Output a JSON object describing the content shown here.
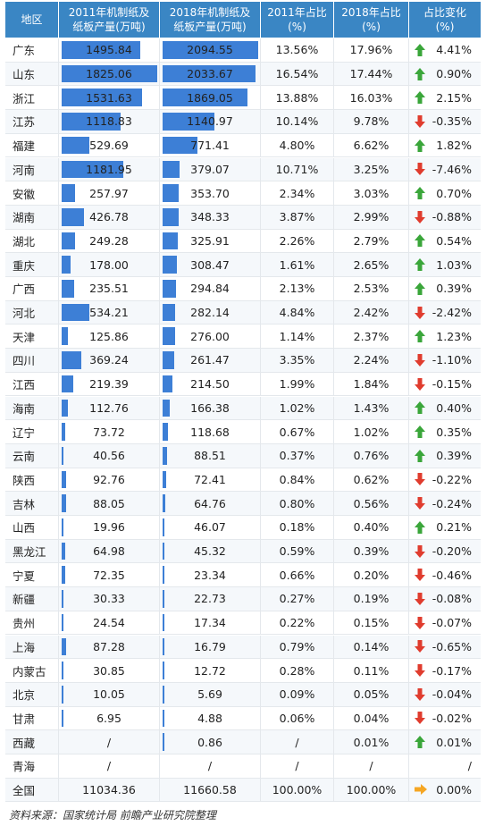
{
  "headers": [
    "地区",
    "2011年机制纸及\n纸板产量(万吨)",
    "2018年机制纸及\n纸板产量(万吨)",
    "2011年占比\n(%)",
    "2018年占比\n(%)",
    "占比变化\n(%)"
  ],
  "colors": {
    "header": "#3a86c4",
    "bar": "#3d7fd6",
    "up": "#3aa63a",
    "down": "#e03c2e",
    "flat": "#f5a623"
  },
  "chart_data": {
    "type": "table",
    "columns": [
      "地区",
      "2011年机制纸及纸板产量(万吨)",
      "2018年机制纸及纸板产量(万吨)",
      "2011年占比(%)",
      "2018年占比(%)",
      "占比变化(%)"
    ],
    "bar_max": {
      "p2011": 1825.06,
      "p2018": 2094.55
    },
    "rows": [
      {
        "region": "广东",
        "p2011": "1495.84",
        "p2018": "2094.55",
        "s2011": "13.56%",
        "s2018": "17.96%",
        "change": "4.41%",
        "trend": "up"
      },
      {
        "region": "山东",
        "p2011": "1825.06",
        "p2018": "2033.67",
        "s2011": "16.54%",
        "s2018": "17.44%",
        "change": "0.90%",
        "trend": "up"
      },
      {
        "region": "浙江",
        "p2011": "1531.63",
        "p2018": "1869.05",
        "s2011": "13.88%",
        "s2018": "16.03%",
        "change": "2.15%",
        "trend": "up"
      },
      {
        "region": "江苏",
        "p2011": "1118.83",
        "p2018": "1140.97",
        "s2011": "10.14%",
        "s2018": "9.78%",
        "change": "-0.35%",
        "trend": "down"
      },
      {
        "region": "福建",
        "p2011": "529.69",
        "p2018": "771.41",
        "s2011": "4.80%",
        "s2018": "6.62%",
        "change": "1.82%",
        "trend": "up"
      },
      {
        "region": "河南",
        "p2011": "1181.95",
        "p2018": "379.07",
        "s2011": "10.71%",
        "s2018": "3.25%",
        "change": "-7.46%",
        "trend": "down"
      },
      {
        "region": "安徽",
        "p2011": "257.97",
        "p2018": "353.70",
        "s2011": "2.34%",
        "s2018": "3.03%",
        "change": "0.70%",
        "trend": "up"
      },
      {
        "region": "湖南",
        "p2011": "426.78",
        "p2018": "348.33",
        "s2011": "3.87%",
        "s2018": "2.99%",
        "change": "-0.88%",
        "trend": "down"
      },
      {
        "region": "湖北",
        "p2011": "249.28",
        "p2018": "325.91",
        "s2011": "2.26%",
        "s2018": "2.79%",
        "change": "0.54%",
        "trend": "up"
      },
      {
        "region": "重庆",
        "p2011": "178.00",
        "p2018": "308.47",
        "s2011": "1.61%",
        "s2018": "2.65%",
        "change": "1.03%",
        "trend": "up"
      },
      {
        "region": "广西",
        "p2011": "235.51",
        "p2018": "294.84",
        "s2011": "2.13%",
        "s2018": "2.53%",
        "change": "0.39%",
        "trend": "up"
      },
      {
        "region": "河北",
        "p2011": "534.21",
        "p2018": "282.14",
        "s2011": "4.84%",
        "s2018": "2.42%",
        "change": "-2.42%",
        "trend": "down"
      },
      {
        "region": "天津",
        "p2011": "125.86",
        "p2018": "276.00",
        "s2011": "1.14%",
        "s2018": "2.37%",
        "change": "1.23%",
        "trend": "up"
      },
      {
        "region": "四川",
        "p2011": "369.24",
        "p2018": "261.47",
        "s2011": "3.35%",
        "s2018": "2.24%",
        "change": "-1.10%",
        "trend": "down"
      },
      {
        "region": "江西",
        "p2011": "219.39",
        "p2018": "214.50",
        "s2011": "1.99%",
        "s2018": "1.84%",
        "change": "-0.15%",
        "trend": "down"
      },
      {
        "region": "海南",
        "p2011": "112.76",
        "p2018": "166.38",
        "s2011": "1.02%",
        "s2018": "1.43%",
        "change": "0.40%",
        "trend": "up"
      },
      {
        "region": "辽宁",
        "p2011": "73.72",
        "p2018": "118.68",
        "s2011": "0.67%",
        "s2018": "1.02%",
        "change": "0.35%",
        "trend": "up"
      },
      {
        "region": "云南",
        "p2011": "40.56",
        "p2018": "88.51",
        "s2011": "0.37%",
        "s2018": "0.76%",
        "change": "0.39%",
        "trend": "up"
      },
      {
        "region": "陕西",
        "p2011": "92.76",
        "p2018": "72.41",
        "s2011": "0.84%",
        "s2018": "0.62%",
        "change": "-0.22%",
        "trend": "down"
      },
      {
        "region": "吉林",
        "p2011": "88.05",
        "p2018": "64.76",
        "s2011": "0.80%",
        "s2018": "0.56%",
        "change": "-0.24%",
        "trend": "down"
      },
      {
        "region": "山西",
        "p2011": "19.96",
        "p2018": "46.07",
        "s2011": "0.18%",
        "s2018": "0.40%",
        "change": "0.21%",
        "trend": "up"
      },
      {
        "region": "黑龙江",
        "p2011": "64.98",
        "p2018": "45.32",
        "s2011": "0.59%",
        "s2018": "0.39%",
        "change": "-0.20%",
        "trend": "down"
      },
      {
        "region": "宁夏",
        "p2011": "72.35",
        "p2018": "23.34",
        "s2011": "0.66%",
        "s2018": "0.20%",
        "change": "-0.46%",
        "trend": "down"
      },
      {
        "region": "新疆",
        "p2011": "30.33",
        "p2018": "22.73",
        "s2011": "0.27%",
        "s2018": "0.19%",
        "change": "-0.08%",
        "trend": "down"
      },
      {
        "region": "贵州",
        "p2011": "24.54",
        "p2018": "17.34",
        "s2011": "0.22%",
        "s2018": "0.15%",
        "change": "-0.07%",
        "trend": "down"
      },
      {
        "region": "上海",
        "p2011": "87.28",
        "p2018": "16.79",
        "s2011": "0.79%",
        "s2018": "0.14%",
        "change": "-0.65%",
        "trend": "down"
      },
      {
        "region": "内蒙古",
        "p2011": "30.85",
        "p2018": "12.72",
        "s2011": "0.28%",
        "s2018": "0.11%",
        "change": "-0.17%",
        "trend": "down"
      },
      {
        "region": "北京",
        "p2011": "10.05",
        "p2018": "5.69",
        "s2011": "0.09%",
        "s2018": "0.05%",
        "change": "-0.04%",
        "trend": "down"
      },
      {
        "region": "甘肃",
        "p2011": "6.95",
        "p2018": "4.88",
        "s2011": "0.06%",
        "s2018": "0.04%",
        "change": "-0.02%",
        "trend": "down"
      },
      {
        "region": "西藏",
        "p2011": "/",
        "p2018": "0.86",
        "s2011": "/",
        "s2018": "0.01%",
        "change": "0.01%",
        "trend": "up"
      },
      {
        "region": "青海",
        "p2011": "/",
        "p2018": "/",
        "s2011": "/",
        "s2018": "/",
        "change": "/",
        "trend": "none"
      },
      {
        "region": "全国",
        "p2011": "11034.36",
        "p2018": "11660.58",
        "s2011": "100.00%",
        "s2018": "100.00%",
        "change": "0.00%",
        "trend": "flat"
      }
    ]
  },
  "source": "资料来源：国家统计局 前瞻产业研究院整理"
}
